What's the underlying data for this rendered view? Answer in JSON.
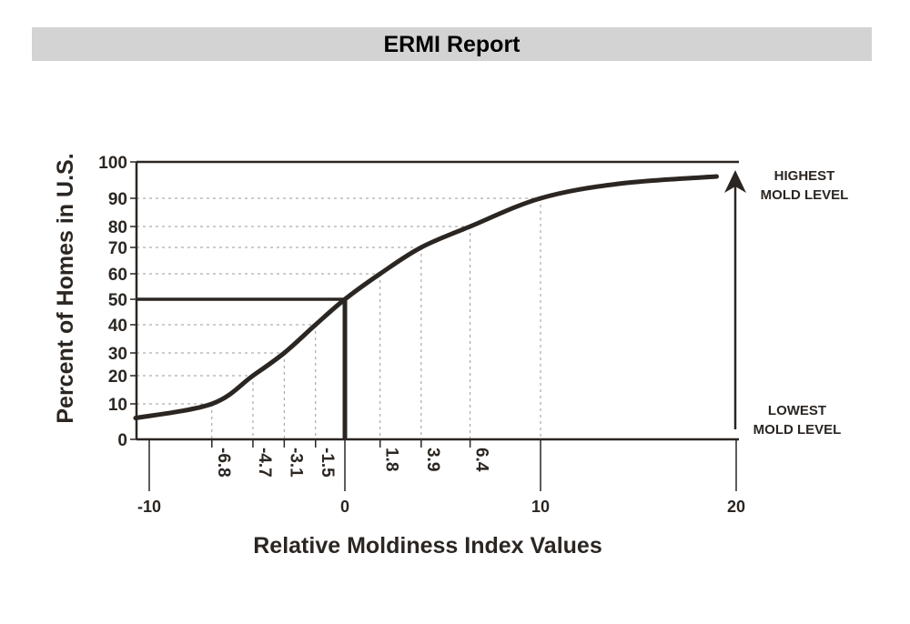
{
  "header": {
    "title": "ERMI Report"
  },
  "chart_data": {
    "type": "line",
    "title": "",
    "xlabel": "Relative Moldiness Index Values",
    "ylabel": "Percent of Homes in U.S.",
    "xlim": [
      -10.7,
      20
    ],
    "ylim": [
      0,
      100
    ],
    "x_ticks": [
      -10,
      0,
      10,
      20
    ],
    "x_tick_labels": [
      "-10",
      "0",
      "10",
      "20"
    ],
    "y_ticks": [
      0,
      10,
      20,
      30,
      40,
      50,
      60,
      70,
      80,
      90,
      100
    ],
    "y_tick_labels": [
      "0",
      "10",
      "20",
      "30",
      "40",
      "50",
      "60",
      "70",
      "80",
      "90",
      "100"
    ],
    "series": [
      {
        "x": [
          -10.7,
          -6.8,
          -4.7,
          -3.1,
          -1.5,
          0,
          1.8,
          3.9,
          6.4,
          10,
          14,
          19
        ],
        "y": [
          6,
          10,
          20,
          30,
          40,
          50,
          60,
          70,
          80,
          90,
          94,
          96
        ]
      }
    ],
    "markers": [
      {
        "x": -6.8,
        "y": 10,
        "label": "-6.8"
      },
      {
        "x": -4.7,
        "y": 20,
        "label": "-4.7"
      },
      {
        "x": -3.1,
        "y": 30,
        "label": "-3.1"
      },
      {
        "x": -1.5,
        "y": 40,
        "label": "-1.5"
      },
      {
        "x": 1.8,
        "y": 60,
        "label": "1.8"
      },
      {
        "x": 3.9,
        "y": 70,
        "label": "3.9"
      },
      {
        "x": 6.4,
        "y": 80,
        "label": "6.4"
      },
      {
        "x": 10,
        "y": 90,
        "label": ""
      }
    ],
    "median": {
      "x": 0,
      "y": 50
    },
    "annotations": {
      "high": [
        "HIGHEST",
        "MOLD LEVEL"
      ],
      "low": [
        "LOWEST",
        "MOLD LEVEL"
      ]
    },
    "grid": "dotted at marker values",
    "colors": {
      "line": "#2b2622",
      "grid": "#999999",
      "title_bar": "#d3d3d3"
    }
  }
}
